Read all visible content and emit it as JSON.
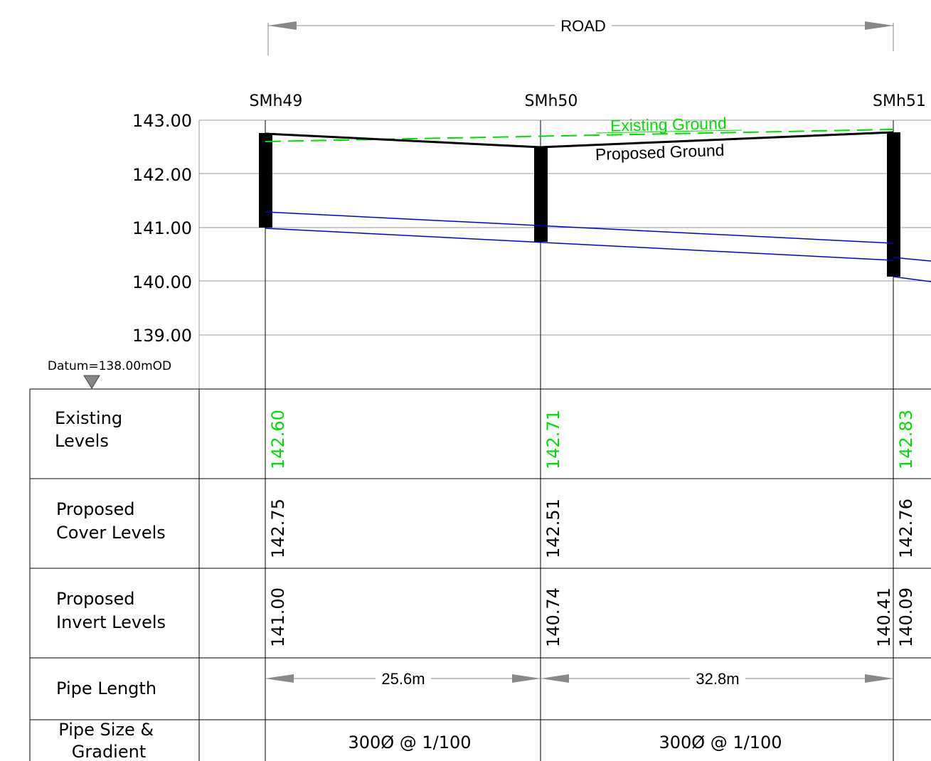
{
  "road": {
    "label": "ROAD"
  },
  "manholes": [
    {
      "name": "SMh49",
      "existing": "142.60",
      "cover": "142.75",
      "inverts": [
        "141.00"
      ]
    },
    {
      "name": "SMh50",
      "existing": "142.71",
      "cover": "142.51",
      "inverts": [
        "140.74"
      ]
    },
    {
      "name": "SMh51",
      "existing": "142.83",
      "cover": "142.76",
      "inverts": [
        "140.41",
        "140.09"
      ]
    }
  ],
  "elevation_axis": {
    "ticks": [
      "143.00",
      "142.00",
      "141.00",
      "140.00",
      "139.00"
    ]
  },
  "datum": {
    "label": "Datum=138.00mOD"
  },
  "ground_labels": {
    "existing": "Existing Ground",
    "proposed": "Proposed Ground"
  },
  "table": {
    "rows": [
      {
        "label": [
          "Existing",
          "Levels"
        ]
      },
      {
        "label": [
          "Proposed",
          "Cover Levels"
        ]
      },
      {
        "label": [
          "Proposed",
          "Invert Levels"
        ]
      },
      {
        "label": [
          "Pipe Length"
        ]
      },
      {
        "label": [
          "Pipe Size &",
          "Gradient"
        ]
      }
    ]
  },
  "segments": [
    {
      "length": "25.6m",
      "size_gradient": "300Ø @ 1/100"
    },
    {
      "length": "32.8m",
      "size_gradient": "300Ø @ 1/100"
    }
  ],
  "colors": {
    "existing": "#00dd00",
    "pipe": "#0000dd",
    "proposed": "#000000",
    "grid": "#999999"
  }
}
